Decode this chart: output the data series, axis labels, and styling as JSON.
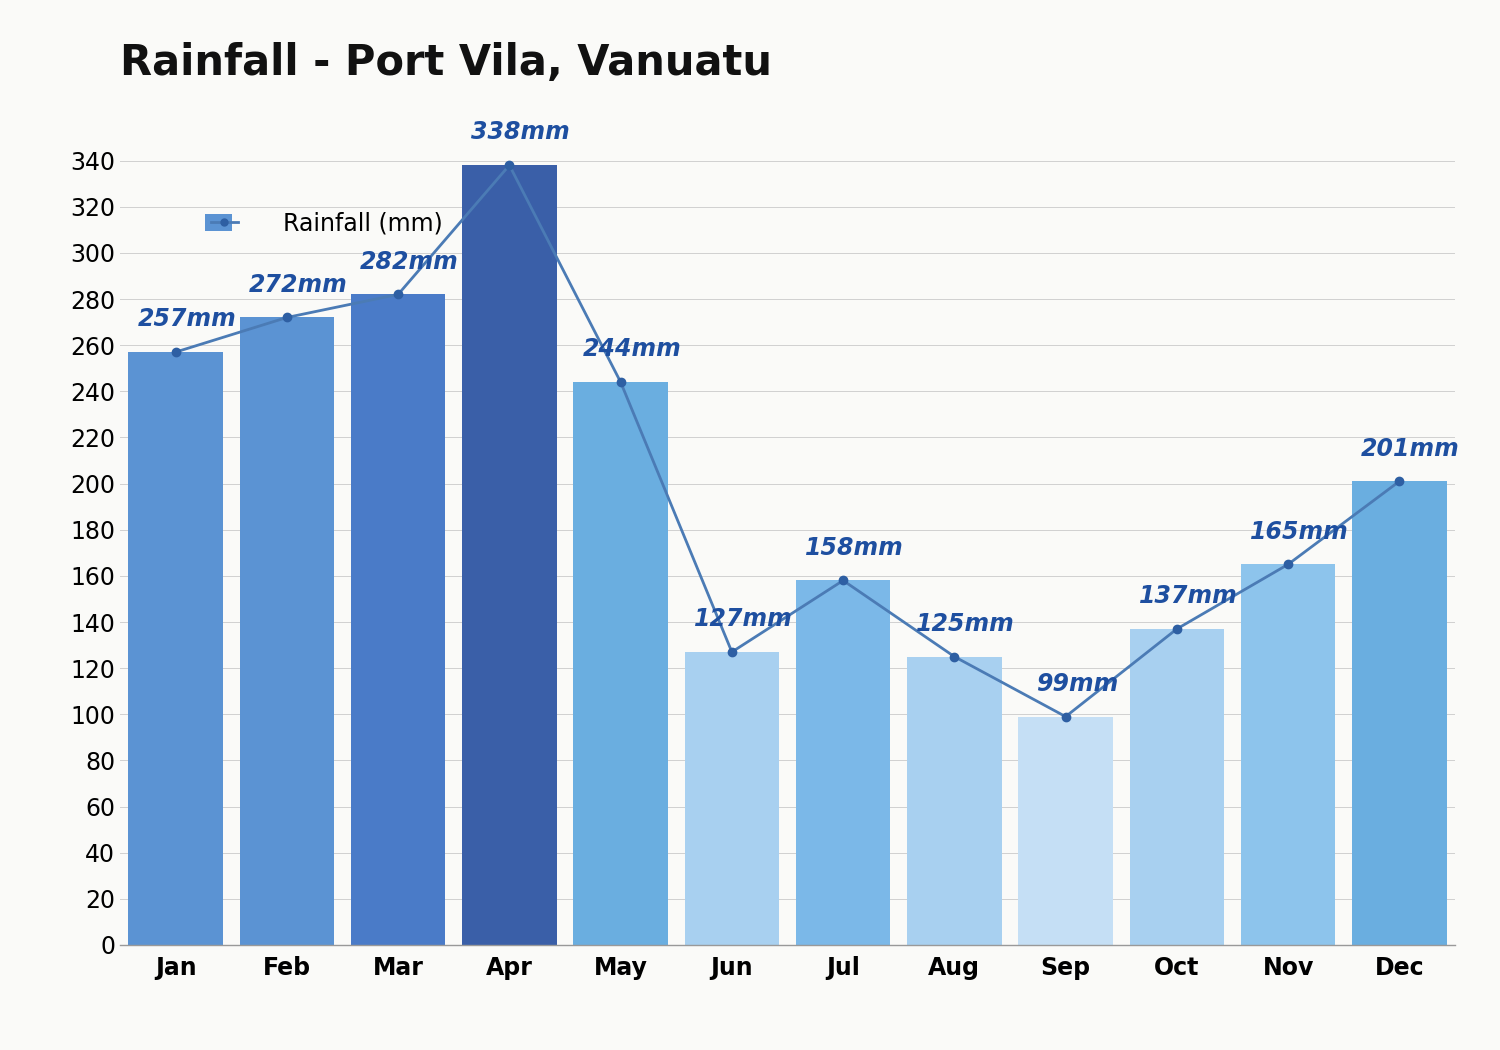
{
  "title": "Rainfall - Port Vila, Vanuatu",
  "months": [
    "Jan",
    "Feb",
    "Mar",
    "Apr",
    "May",
    "Jun",
    "Jul",
    "Aug",
    "Sep",
    "Oct",
    "Nov",
    "Dec"
  ],
  "values": [
    257,
    272,
    282,
    338,
    244,
    127,
    158,
    125,
    99,
    137,
    165,
    201
  ],
  "bar_colors": [
    "#5B93D3",
    "#5B93D3",
    "#4A7BC8",
    "#3A5FA8",
    "#6AAEE0",
    "#A8D0F0",
    "#7BB8E8",
    "#A8D0F0",
    "#C5DFF5",
    "#A8D0F0",
    "#8DC4EC",
    "#6AAEE0"
  ],
  "line_color": "#4B7BB5",
  "marker_color": "#2E5FA3",
  "annotation_color": "#1E4FA0",
  "background_color": "#FAFAF8",
  "plot_bg_color": "#FAFAF8",
  "ylim": [
    0,
    355
  ],
  "ytick_max": 340,
  "ytick_step": 20,
  "legend_label": "Rainfall (mm)",
  "legend_patch_color": "#5B93D3",
  "title_fontsize": 30,
  "label_fontsize": 17,
  "tick_fontsize": 17,
  "annotation_fontsize": 17
}
